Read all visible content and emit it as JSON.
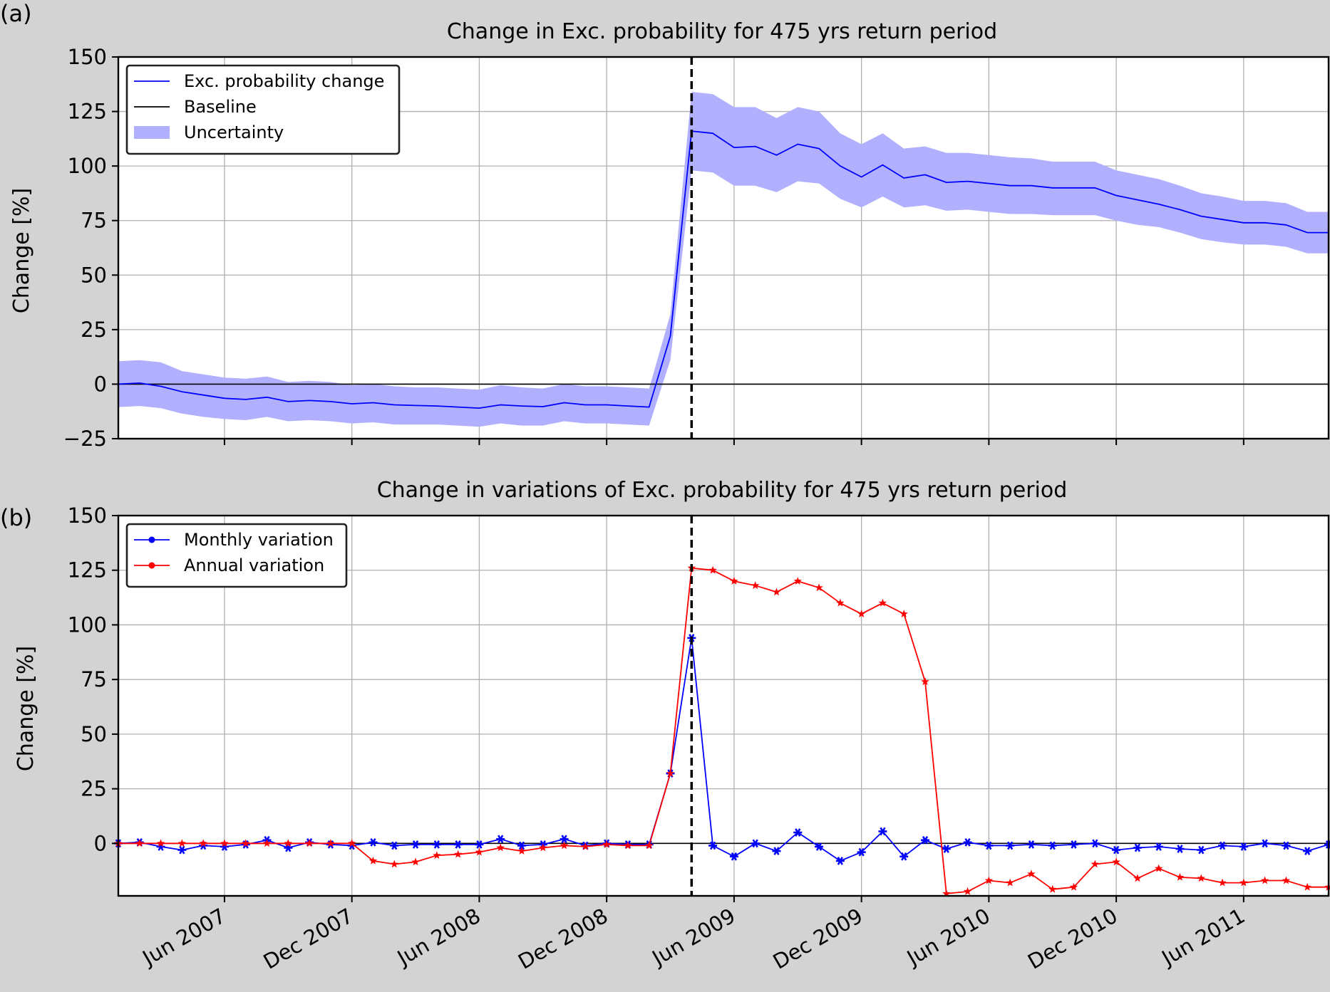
{
  "chart_data": [
    {
      "panel_label": "(a)",
      "type": "line",
      "title": "Change in Exc. probability for 475 yrs return period",
      "ylabel": "Change [%]",
      "xlabel": "",
      "ylim": [
        -25,
        150
      ],
      "yticks": [
        "150",
        "125",
        "100",
        "75",
        "50",
        "25",
        "0",
        "−25"
      ],
      "ytick_values": [
        150,
        125,
        100,
        75,
        50,
        25,
        0,
        -25
      ],
      "x_range": [
        "2007-01",
        "2011-10"
      ],
      "xtick_months": [
        "2007-06",
        "2007-12",
        "2008-06",
        "2008-12",
        "2009-06",
        "2009-12",
        "2010-06",
        "2010-12",
        "2011-06"
      ],
      "grid": true,
      "event_line_month": "2009-04",
      "legend": {
        "position": "top-left",
        "items": [
          {
            "label": "Exc. probability change",
            "kind": "line",
            "color": "#0000ff"
          },
          {
            "label": "Baseline",
            "kind": "line",
            "color": "#000000"
          },
          {
            "label": "Uncertainty",
            "kind": "fill",
            "color": "#b0b0ff"
          }
        ]
      },
      "x_months": [
        "2007-01",
        "2007-02",
        "2007-03",
        "2007-04",
        "2007-05",
        "2007-06",
        "2007-07",
        "2007-08",
        "2007-09",
        "2007-10",
        "2007-11",
        "2007-12",
        "2008-01",
        "2008-02",
        "2008-03",
        "2008-04",
        "2008-05",
        "2008-06",
        "2008-07",
        "2008-08",
        "2008-09",
        "2008-10",
        "2008-11",
        "2008-12",
        "2009-01",
        "2009-02",
        "2009-03",
        "2009-04",
        "2009-05",
        "2009-06",
        "2009-07",
        "2009-08",
        "2009-09",
        "2009-10",
        "2009-11",
        "2009-12",
        "2010-01",
        "2010-02",
        "2010-03",
        "2010-04",
        "2010-05",
        "2010-06",
        "2010-07",
        "2010-08",
        "2010-09",
        "2010-10",
        "2010-11",
        "2010-12",
        "2011-01",
        "2011-02",
        "2011-03",
        "2011-04",
        "2011-05",
        "2011-06",
        "2011-07",
        "2011-08",
        "2011-09",
        "2011-10"
      ],
      "series": [
        {
          "name": "Exc. probability change",
          "color": "#0000ff",
          "values": [
            0,
            0.5,
            -1,
            -3.5,
            -5,
            -6.5,
            -7,
            -6,
            -8,
            -7.5,
            -8,
            -9,
            -8.5,
            -9.5,
            -9.8,
            -10,
            -10.5,
            -11,
            -9.5,
            -10,
            -10.3,
            -8.5,
            -9.5,
            -9.5,
            -10,
            -10.5,
            22,
            116,
            115,
            108.5,
            109,
            105,
            110,
            108,
            100,
            95,
            100.5,
            94.5,
            96,
            92.5,
            93,
            92,
            91,
            91,
            90,
            90,
            90,
            86.5,
            84.5,
            82.5,
            80,
            77,
            75.5,
            74,
            74,
            73,
            69.5,
            69.5
          ],
          "upper": [
            10.5,
            11,
            10,
            6,
            4.5,
            3,
            2.5,
            3.5,
            1,
            1.5,
            1,
            -0.5,
            0,
            -1,
            -1.5,
            -1.5,
            -2,
            -2.5,
            -0.5,
            -1.5,
            -2,
            0,
            -1,
            -1,
            -1.5,
            -2,
            32,
            134,
            133,
            127,
            127,
            122,
            127,
            125,
            115,
            110,
            115,
            108,
            109,
            106,
            106,
            105,
            104,
            103.5,
            102,
            102,
            102,
            98,
            96,
            94,
            91,
            87.5,
            86,
            84,
            84,
            83,
            79,
            79
          ],
          "lower": [
            -10.5,
            -10,
            -11,
            -13.5,
            -15,
            -16,
            -16.5,
            -15,
            -17,
            -16.5,
            -17,
            -18,
            -17.5,
            -18.5,
            -18.5,
            -18.5,
            -19,
            -19.5,
            -18,
            -19,
            -19,
            -17,
            -18,
            -18,
            -18.5,
            -19,
            11,
            98,
            97,
            91,
            91,
            88,
            93,
            92,
            85,
            81,
            86,
            81,
            82,
            79.5,
            80,
            79,
            78,
            78,
            77.5,
            77.5,
            77.5,
            75,
            73,
            72,
            69.5,
            66.5,
            65,
            64,
            64,
            63,
            60,
            60
          ]
        }
      ],
      "baseline": 0
    },
    {
      "panel_label": "(b)",
      "type": "line",
      "title": "Change in variations of Exc. probability for 475 yrs return period",
      "ylabel": "Change [%]",
      "xlabel": "",
      "ylim": [
        -24,
        150
      ],
      "yticks": [
        "150",
        "125",
        "100",
        "75",
        "50",
        "25",
        "0"
      ],
      "ytick_values": [
        150,
        125,
        100,
        75,
        50,
        25,
        0
      ],
      "x_range": [
        "2007-01",
        "2011-10"
      ],
      "xtick_months": [
        "2007-06",
        "2007-12",
        "2008-06",
        "2008-12",
        "2009-06",
        "2009-12",
        "2010-06",
        "2010-12",
        "2011-06"
      ],
      "xtick_labels": [
        "Jun 2007",
        "Dec 2007",
        "Jun 2008",
        "Dec 2008",
        "Jun 2009",
        "Dec 2009",
        "Jun 2010",
        "Dec 2010",
        "Jun 2011"
      ],
      "grid": true,
      "event_line_month": "2009-04",
      "legend": {
        "position": "top-left",
        "items": [
          {
            "label": "Monthly variation",
            "kind": "line-marker",
            "color": "#0000ff"
          },
          {
            "label": "Annual variation",
            "kind": "line-marker",
            "color": "#ff0000"
          }
        ]
      },
      "x_months": [
        "2007-01",
        "2007-02",
        "2007-03",
        "2007-04",
        "2007-05",
        "2007-06",
        "2007-07",
        "2007-08",
        "2007-09",
        "2007-10",
        "2007-11",
        "2007-12",
        "2008-01",
        "2008-02",
        "2008-03",
        "2008-04",
        "2008-05",
        "2008-06",
        "2008-07",
        "2008-08",
        "2008-09",
        "2008-10",
        "2008-11",
        "2008-12",
        "2009-01",
        "2009-02",
        "2009-03",
        "2009-04",
        "2009-05",
        "2009-06",
        "2009-07",
        "2009-08",
        "2009-09",
        "2009-10",
        "2009-11",
        "2009-12",
        "2010-01",
        "2010-02",
        "2010-03",
        "2010-04",
        "2010-05",
        "2010-06",
        "2010-07",
        "2010-08",
        "2010-09",
        "2010-10",
        "2010-11",
        "2010-12",
        "2011-01",
        "2011-02",
        "2011-03",
        "2011-04",
        "2011-05",
        "2011-06",
        "2011-07",
        "2011-08",
        "2011-09",
        "2011-10"
      ],
      "series": [
        {
          "name": "Monthly variation",
          "color": "#0000ff",
          "values": [
            0,
            0.5,
            -1.5,
            -3,
            -1,
            -1.5,
            -0.5,
            1.5,
            -2,
            0.5,
            -0.5,
            -1,
            0.5,
            -1,
            -0.5,
            -0.5,
            -0.5,
            -0.5,
            2,
            -1,
            -0.5,
            2,
            -1,
            0,
            -0.5,
            -0.5,
            32,
            94,
            -1,
            -6,
            0,
            -3.5,
            5,
            -1.5,
            -8,
            -4,
            5.5,
            -6,
            1.5,
            -2.5,
            0.5,
            -1,
            -1,
            -0.5,
            -1,
            -0.5,
            0,
            -3,
            -2,
            -1.5,
            -2.5,
            -3,
            -1,
            -1.5,
            0,
            -1,
            -3.5,
            -0.5
          ]
        },
        {
          "name": "Annual variation",
          "color": "#ff0000",
          "values": [
            0,
            0,
            0,
            0,
            0,
            0,
            0,
            0,
            0,
            0,
            0,
            0,
            -8,
            -9.5,
            -8.5,
            -5.5,
            -5,
            -4,
            -2,
            -3.5,
            -2,
            -1,
            -1.5,
            -0.5,
            -1,
            -1,
            32,
            126,
            125,
            120,
            118,
            115,
            120,
            117,
            110,
            105,
            110,
            105,
            74,
            -23,
            -22,
            -17,
            -18,
            -14,
            -21,
            -20,
            -9.5,
            -8.5,
            -16,
            -11.5,
            -15.5,
            -16,
            -18,
            -18,
            -17,
            -17,
            -20,
            -20
          ]
        }
      ],
      "baseline": 0
    }
  ]
}
